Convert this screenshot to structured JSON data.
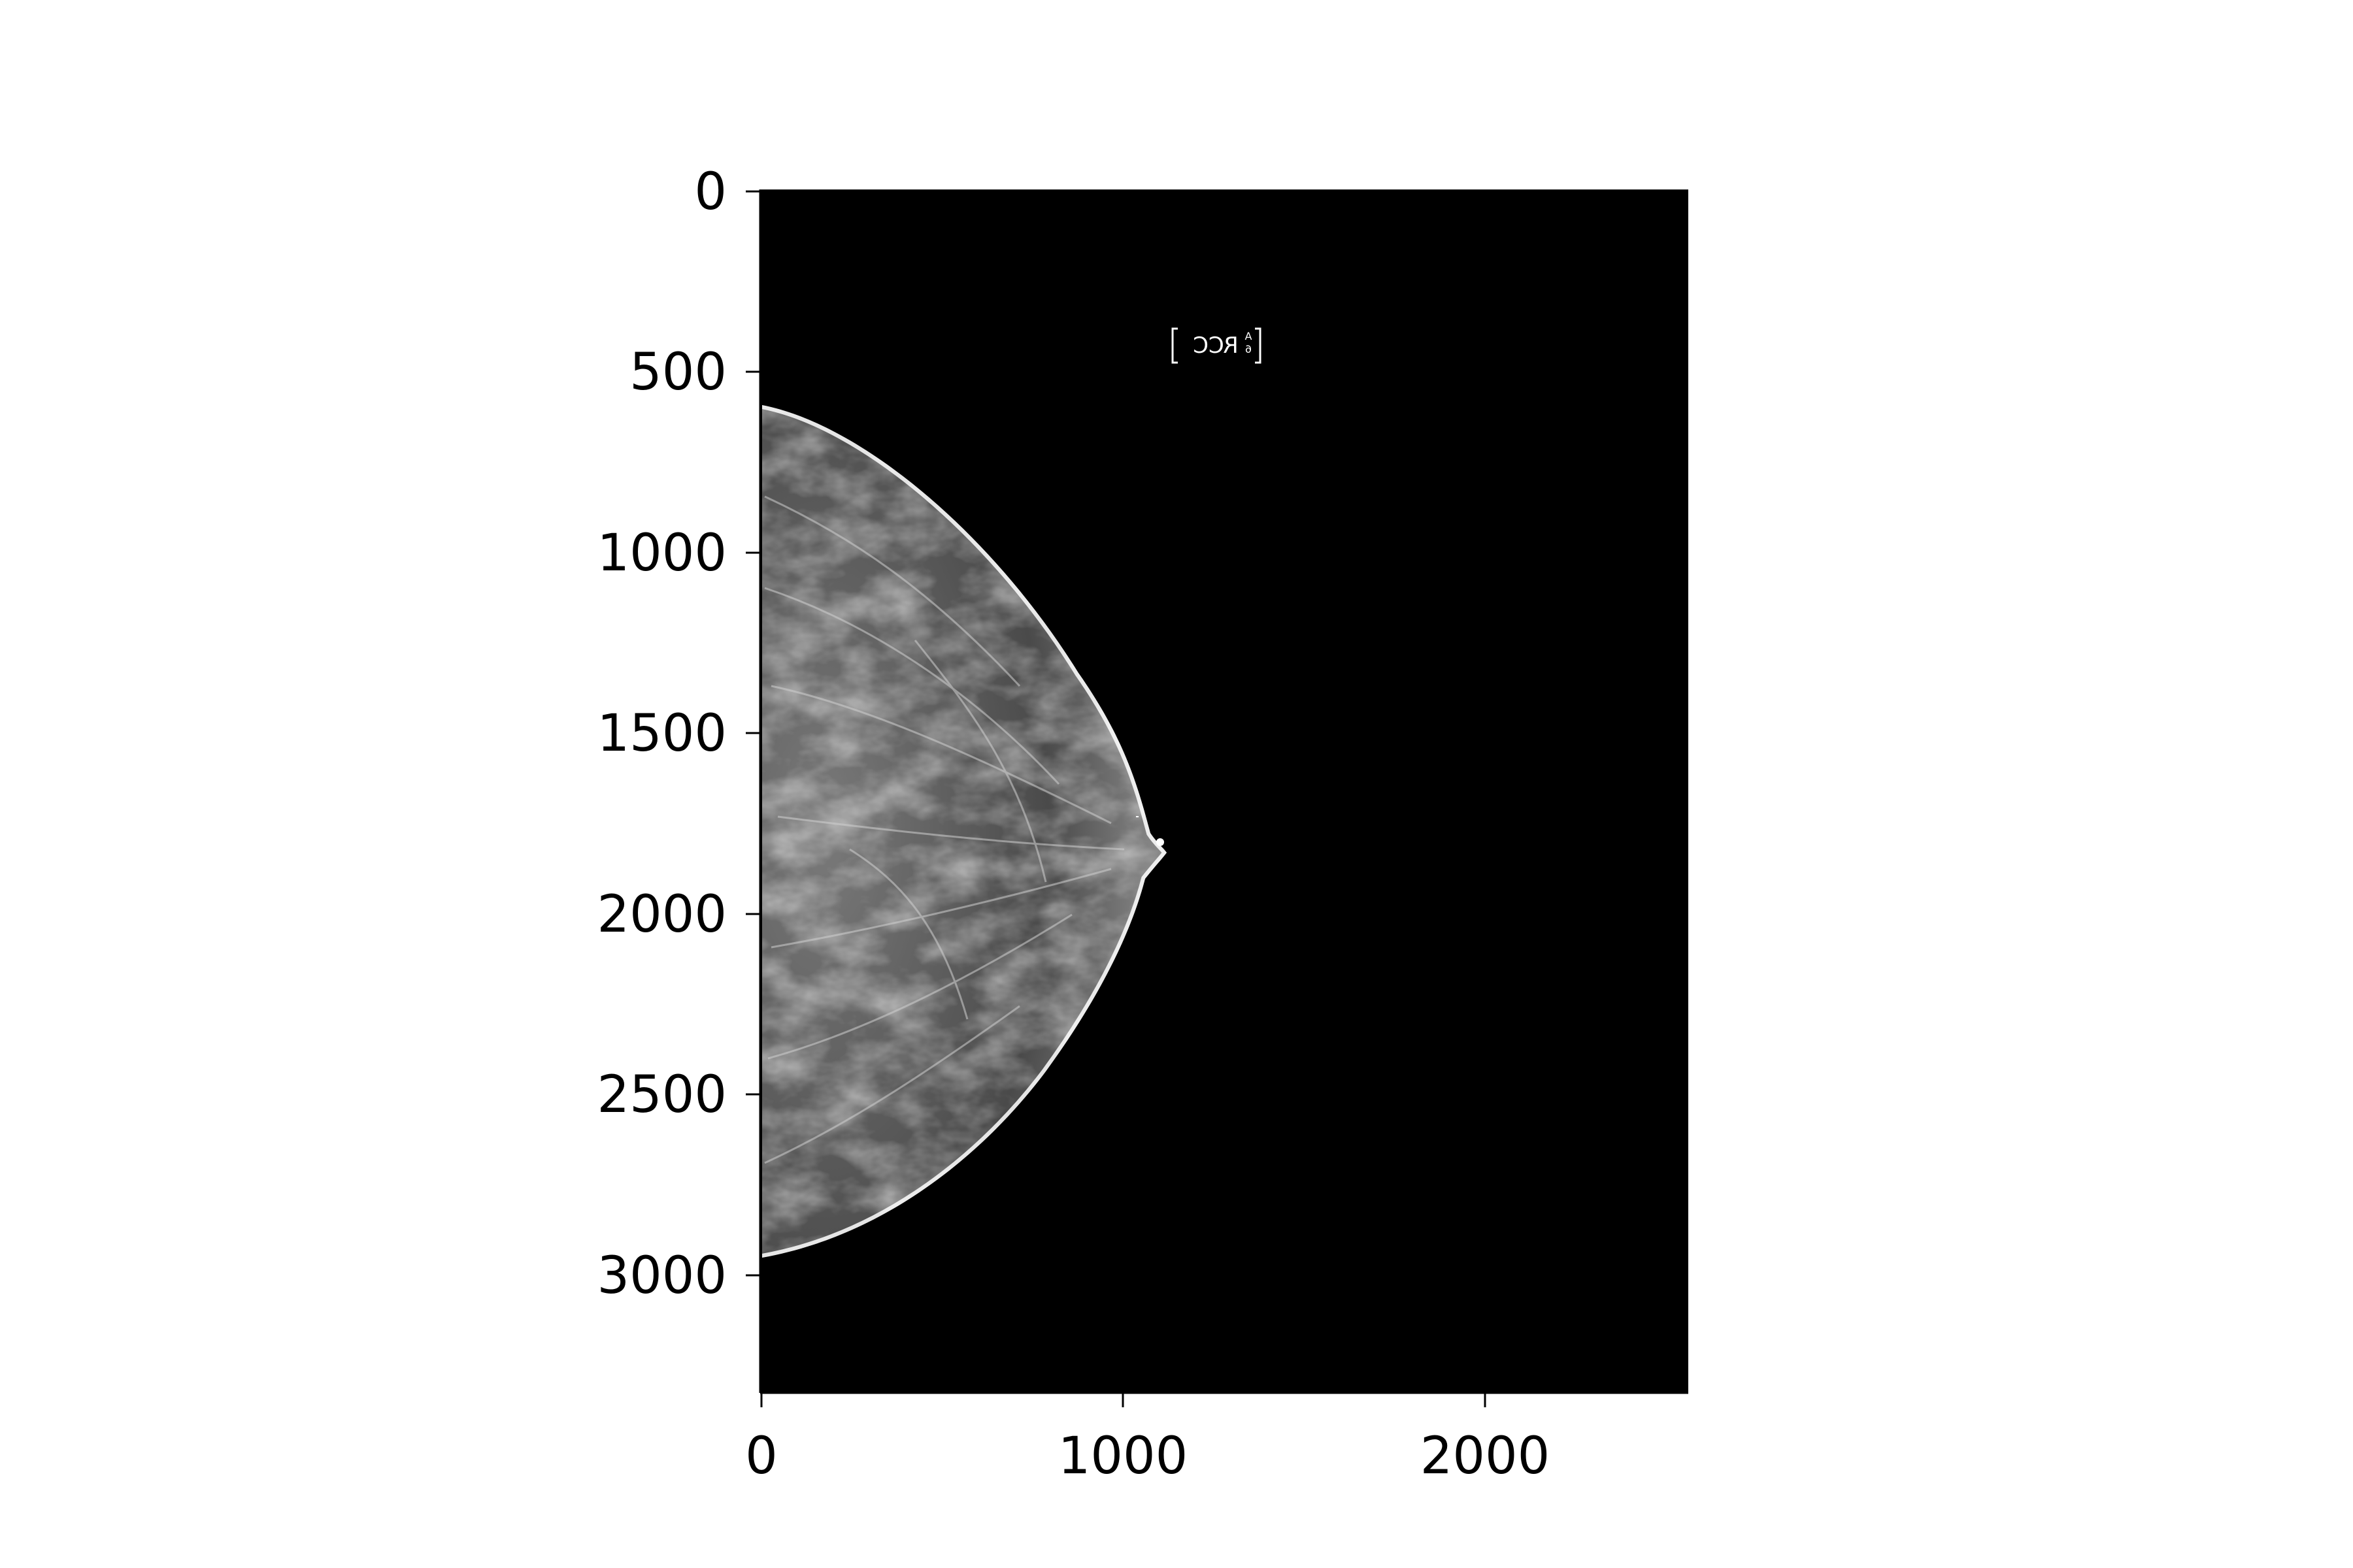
{
  "image": {
    "description_type": "medical-image-plot",
    "x_axis": {
      "ticks": [
        "0",
        "1000",
        "2000"
      ],
      "range": [
        0,
        2560
      ]
    },
    "y_axis": {
      "ticks": [
        "0",
        "500",
        "1000",
        "1500",
        "2000",
        "2500",
        "3000"
      ],
      "range": [
        0,
        3328
      ],
      "inverted": true
    },
    "marker": {
      "text": "RCC",
      "small_top": "A",
      "small_bottom": "6"
    },
    "colors": {
      "background": "#000000",
      "tissue": "#bfbfbf",
      "figure_bg": "#ffffff"
    }
  }
}
